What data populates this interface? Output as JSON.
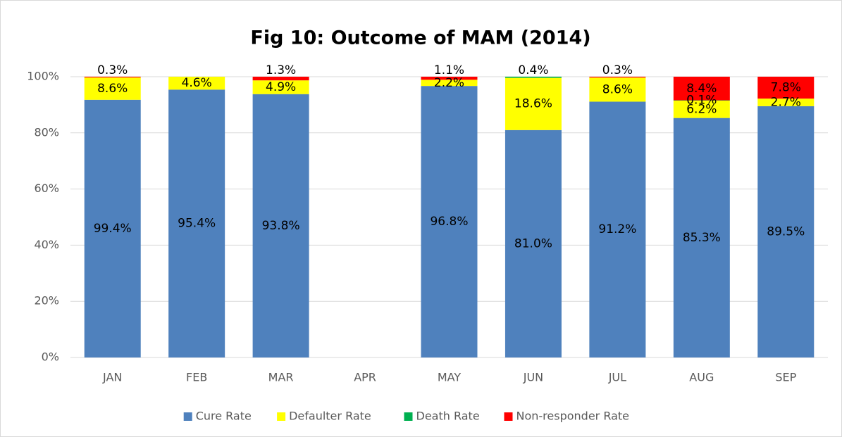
{
  "chart_data": {
    "type": "bar",
    "stacking": "percent",
    "title": "Fig 10: Outcome of MAM (2014)",
    "categories": [
      "JAN",
      "FEB",
      "MAR",
      "APR",
      "MAY",
      "JUN",
      "JUL",
      "AUG",
      "SEP"
    ],
    "series": [
      {
        "name": "Cure Rate",
        "color": "#4f81bd",
        "values": [
          99.4,
          95.4,
          93.8,
          null,
          96.8,
          81.0,
          91.2,
          85.3,
          89.5
        ],
        "value_labels": [
          "99.4%",
          "95.4%",
          "93.8%",
          null,
          "96.8%",
          "81.0%",
          "91.2%",
          "85.3%",
          "89.5%"
        ]
      },
      {
        "name": "Defaulter Rate",
        "color": "#ffff00",
        "values": [
          8.6,
          4.6,
          4.9,
          null,
          2.2,
          18.6,
          8.6,
          6.2,
          2.7
        ],
        "value_labels": [
          "8.6%",
          "4.6%",
          "4.9%",
          null,
          "2.2%",
          "18.6%",
          "8.6%",
          "6.2%",
          "2.7%"
        ]
      },
      {
        "name": "Death Rate",
        "color": "#00b050",
        "values": [
          null,
          null,
          null,
          null,
          null,
          0.4,
          null,
          0.1,
          null
        ],
        "value_labels": [
          null,
          null,
          null,
          null,
          null,
          "0.4%",
          null,
          "0.1%",
          null
        ]
      },
      {
        "name": "Non-responder Rate",
        "color": "#ff0000",
        "values": [
          0.3,
          null,
          1.3,
          null,
          1.1,
          null,
          0.3,
          8.4,
          7.8
        ],
        "value_labels": [
          "0.3%",
          null,
          "1.3%",
          null,
          "1.1%",
          null,
          "0.3%",
          "8.4%",
          "7.8%"
        ]
      }
    ],
    "ylim": [
      0,
      100
    ],
    "yticks": [
      {
        "value": 0,
        "label": "0%"
      },
      {
        "value": 20,
        "label": "20%"
      },
      {
        "value": 40,
        "label": "40%"
      },
      {
        "value": 60,
        "label": "60%"
      },
      {
        "value": 80,
        "label": "80%"
      },
      {
        "value": 100,
        "label": "100%"
      }
    ],
    "grid": true,
    "legend": "bottom"
  }
}
